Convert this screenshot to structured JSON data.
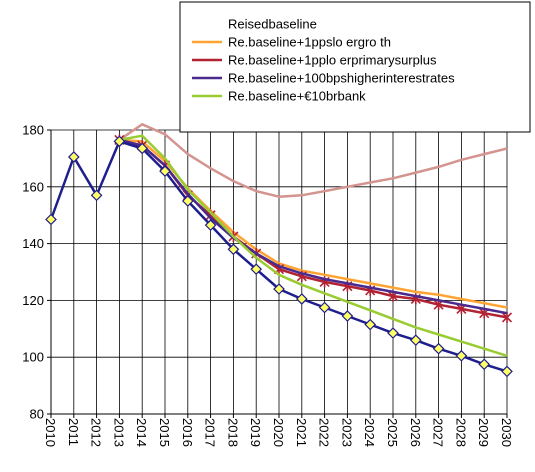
{
  "chart_data": {
    "type": "line",
    "x": [
      "2010",
      "2011",
      "2012",
      "2013",
      "2014",
      "2015",
      "2016",
      "2017",
      "2018",
      "2019",
      "2020",
      "2021",
      "2022",
      "2023",
      "2024",
      "2025",
      "2026",
      "2027",
      "2028",
      "2029",
      "2030"
    ],
    "ylim": [
      80,
      180
    ],
    "yticks": [
      80,
      100,
      120,
      140,
      160,
      180
    ],
    "grid": true,
    "legend_position": "top-right",
    "series": [
      {
        "name": "Reisedbaseline",
        "color": "#d4948f",
        "marker": "none",
        "values": [
          null,
          null,
          null,
          176.5,
          182,
          178.5,
          171.5,
          166.5,
          162,
          158.5,
          156.5,
          157,
          158.5,
          160,
          161.5,
          163,
          165,
          167,
          169.5,
          171.5,
          173.5
        ]
      },
      {
        "name": "Re.baseline+1ppslo ergro th",
        "color": "#ffa333",
        "marker": "none",
        "values": [
          null,
          null,
          null,
          176.5,
          176,
          169,
          159.5,
          151.5,
          144,
          138,
          133,
          130.5,
          129,
          127.5,
          126,
          124.5,
          123,
          122,
          120.5,
          119,
          117.5
        ]
      },
      {
        "name": "Re.baseline+1pplo erprimarysurplus",
        "color": "#b22233",
        "marker": "star",
        "values": [
          null,
          null,
          null,
          176.5,
          174.5,
          167.5,
          157,
          150,
          142.5,
          136.5,
          131,
          128.5,
          126.5,
          125,
          123.5,
          121.5,
          120.5,
          118.5,
          117,
          115.5,
          114
        ]
      },
      {
        "name": "Re.baseline+100bpshigherinterestrates",
        "color": "#4a2a8c",
        "marker": "none",
        "values": [
          null,
          null,
          null,
          176.5,
          174.5,
          167.5,
          157.5,
          149,
          142,
          136.5,
          132,
          129.5,
          127.5,
          126,
          124.5,
          123,
          121.5,
          120,
          118.5,
          117,
          115.5
        ]
      },
      {
        "name": "Re.baseline+€10brbank",
        "color": "#99cc33",
        "marker": "none",
        "values": [
          null,
          null,
          null,
          176.5,
          178,
          170,
          159,
          151,
          142.5,
          135,
          129,
          125.5,
          122.5,
          119.5,
          116.5,
          113.5,
          110.5,
          108,
          105.5,
          103,
          100.5
        ]
      },
      {
        "name": "",
        "color": "#1e1e8c",
        "marker": "diamond",
        "marker_fill": "#ffff66",
        "values": [
          148.5,
          170.5,
          157,
          176,
          173.5,
          165.5,
          155,
          146.5,
          138,
          131,
          124,
          120.5,
          117.5,
          114.5,
          111.5,
          108.5,
          106,
          103,
          100.5,
          97.5,
          95
        ]
      }
    ]
  }
}
